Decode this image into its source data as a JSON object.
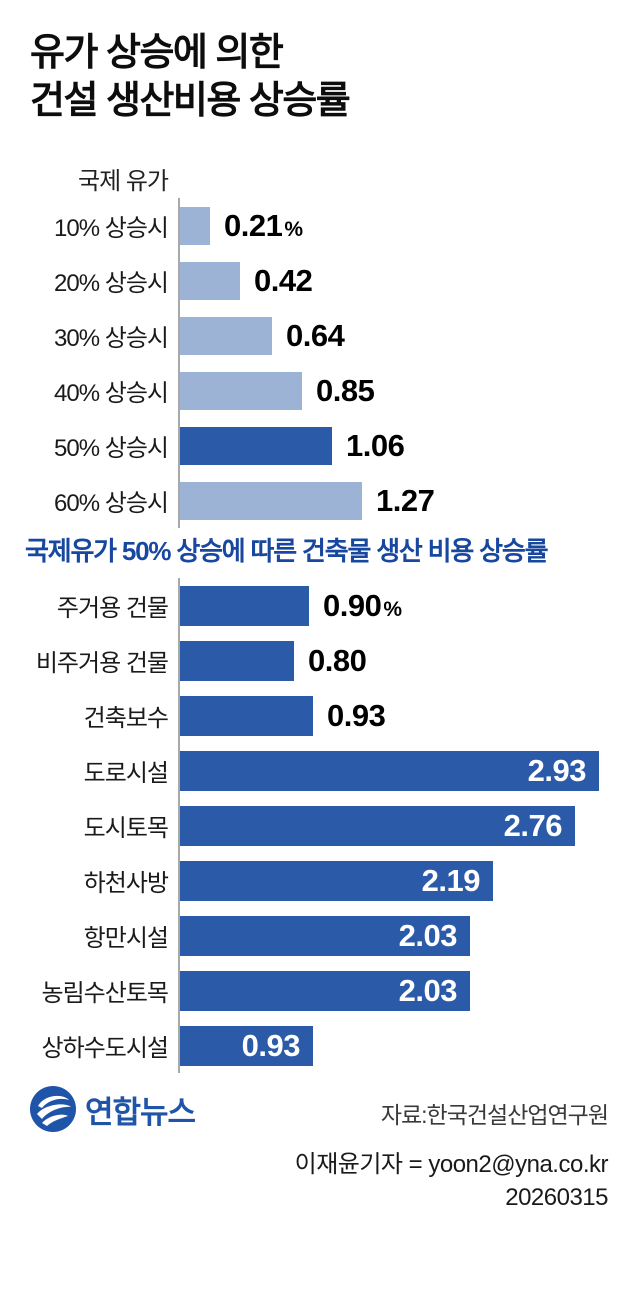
{
  "title": {
    "lines": [
      "유가 상승에 의한",
      "건설 생산비용 상승률"
    ]
  },
  "colors": {
    "bar_light": "#9db3d6",
    "bar_dark": "#2b5ba8",
    "section_title_blue": "#17479e",
    "axis_gray": "#a8a8a8",
    "logo_blue": "#1f55a8"
  },
  "chart_data": [
    {
      "type": "bar",
      "orientation": "horizontal",
      "axis_title": "국제 유가",
      "unit": "%",
      "unit_on_first": true,
      "categories": [
        "10% 상승시",
        "20% 상승시",
        "30% 상승시",
        "40% 상승시",
        "50% 상승시",
        "60% 상승시"
      ],
      "values": [
        0.21,
        0.42,
        0.64,
        0.85,
        1.06,
        1.27
      ],
      "display_values": [
        "0.21",
        "0.42",
        "0.64",
        "0.85",
        "1.06",
        "1.27"
      ],
      "value_inside": [
        false,
        false,
        false,
        false,
        false,
        false
      ],
      "highlight_index": 4,
      "colors": {
        "bar": "#9db3d6",
        "highlight": "#2b5ba8"
      }
    },
    {
      "type": "bar",
      "orientation": "horizontal",
      "section_title": "국제유가 50% 상승에 따른 건축물 생산 비용 상승률",
      "unit": "%",
      "unit_on_first": true,
      "categories": [
        "주거용 건물",
        "비주거용 건물",
        "건축보수",
        "도로시설",
        "도시토목",
        "하천사방",
        "항만시설",
        "농림수산토목",
        "상하수도시설"
      ],
      "values": [
        0.9,
        0.8,
        0.93,
        2.93,
        2.76,
        2.19,
        2.03,
        2.03,
        0.93
      ],
      "display_values": [
        "0.90",
        "0.80",
        "0.93",
        "2.93",
        "2.76",
        "2.19",
        "2.03",
        "2.03",
        "0.93"
      ],
      "value_inside": [
        false,
        false,
        false,
        true,
        true,
        true,
        true,
        true,
        true
      ],
      "highlight_index": -1,
      "colors": {
        "bar": "#2b5ba8",
        "highlight": "#2b5ba8"
      }
    }
  ],
  "footer": {
    "logo_text": "연합뉴스",
    "source": "자료:한국건설산업연구원",
    "byline": "이재윤기자 = yoon2@yna.co.kr",
    "date": "20260315"
  }
}
